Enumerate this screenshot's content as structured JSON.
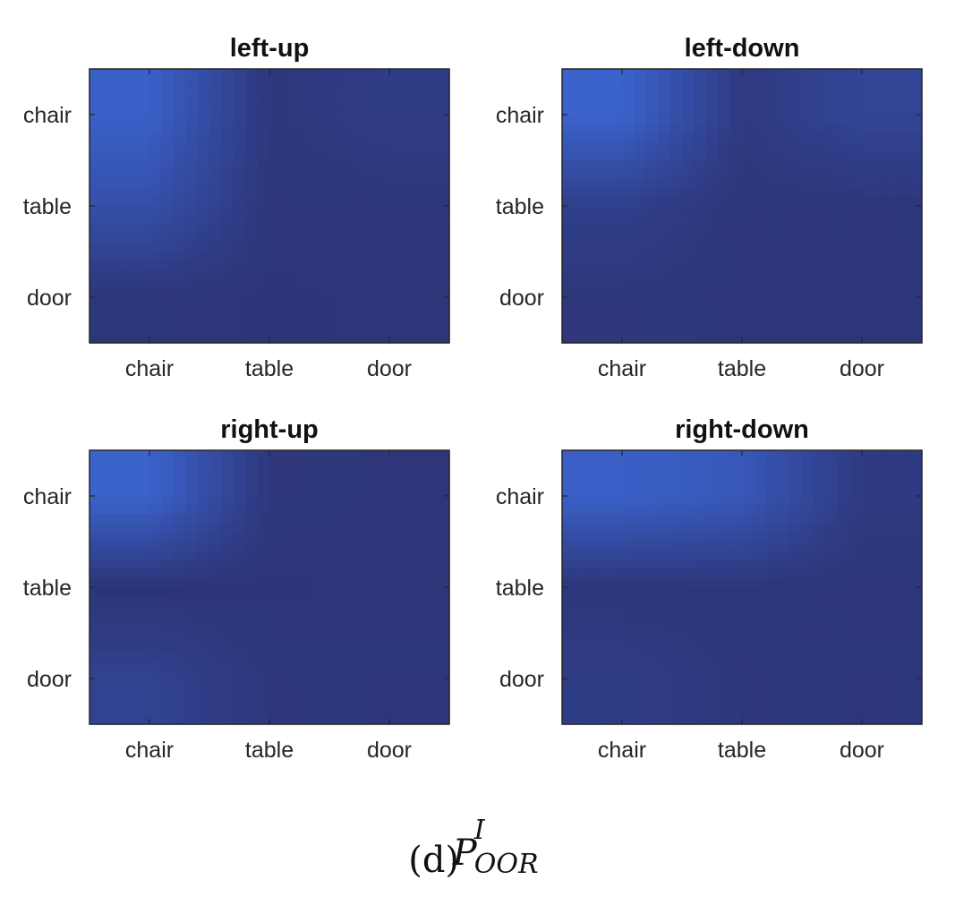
{
  "chart_data": [
    {
      "type": "heatmap",
      "title": "left-up",
      "x_categories": [
        "chair",
        "table",
        "door"
      ],
      "y_categories": [
        "chair",
        "table",
        "door"
      ],
      "values": [
        [
          0.85,
          0.1,
          0.2
        ],
        [
          0.55,
          0.08,
          0.08
        ],
        [
          0.08,
          0.06,
          0.07
        ]
      ],
      "colormap": "parula",
      "clim": [
        0,
        1
      ]
    },
    {
      "type": "heatmap",
      "title": "left-down",
      "x_categories": [
        "chair",
        "table",
        "door"
      ],
      "y_categories": [
        "chair",
        "table",
        "door"
      ],
      "values": [
        [
          0.9,
          0.15,
          0.35
        ],
        [
          0.25,
          0.08,
          0.08
        ],
        [
          0.1,
          0.07,
          0.07
        ]
      ],
      "colormap": "parula",
      "clim": [
        0,
        1
      ]
    },
    {
      "type": "heatmap",
      "title": "right-up",
      "x_categories": [
        "chair",
        "table",
        "door"
      ],
      "y_categories": [
        "chair",
        "table",
        "door"
      ],
      "values": [
        [
          0.9,
          0.1,
          0.08
        ],
        [
          0.05,
          0.06,
          0.07
        ],
        [
          0.3,
          0.1,
          0.08
        ]
      ],
      "colormap": "parula",
      "clim": [
        0,
        1
      ]
    },
    {
      "type": "heatmap",
      "title": "right-down",
      "x_categories": [
        "chair",
        "table",
        "door"
      ],
      "y_categories": [
        "chair",
        "table",
        "door"
      ],
      "values": [
        [
          0.85,
          0.7,
          0.15
        ],
        [
          0.08,
          0.08,
          0.07
        ],
        [
          0.2,
          0.1,
          0.08
        ]
      ],
      "colormap": "parula",
      "clim": [
        0,
        1
      ]
    }
  ],
  "caption": {
    "label": "(d)",
    "symbol": "P",
    "superscript": "I",
    "subscript": "OOR"
  }
}
